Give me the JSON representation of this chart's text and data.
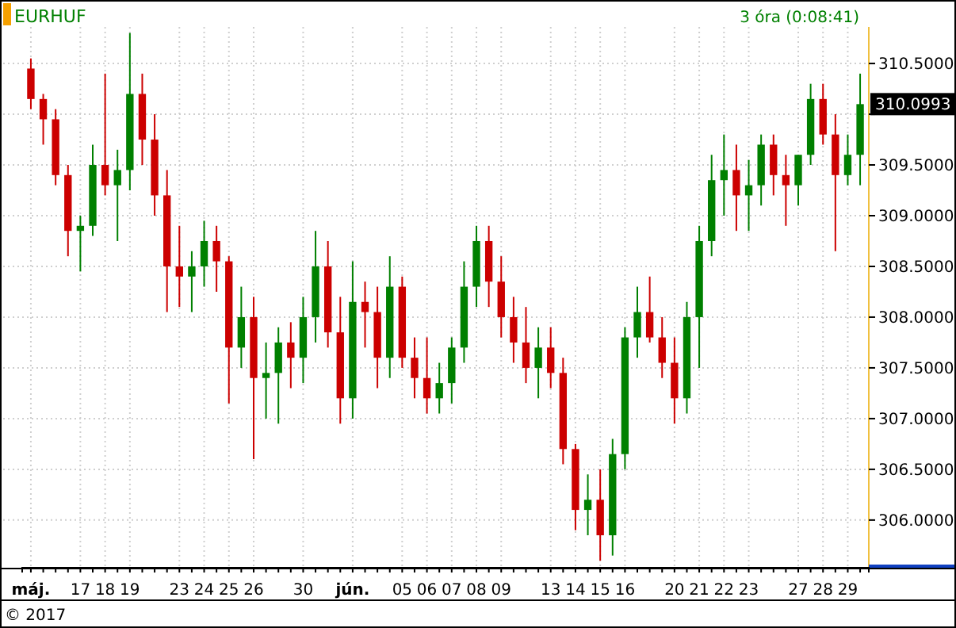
{
  "chart_data": {
    "type": "candlestick",
    "title": "EURHUF",
    "subtitle": "3 óra (0:08:41)",
    "categories": [
      "máj.",
      null,
      null,
      null,
      "17",
      null,
      "18",
      null,
      "19",
      null,
      null,
      null,
      "23",
      null,
      "24",
      null,
      "25",
      null,
      "26",
      null,
      null,
      null,
      "30",
      null,
      null,
      null,
      "jún.",
      null,
      null,
      null,
      "05",
      null,
      "06",
      null,
      "07",
      null,
      "08",
      null,
      "09",
      null,
      null,
      null,
      "13",
      null,
      "14",
      null,
      "15",
      null,
      "16",
      null,
      null,
      null,
      "20",
      null,
      "21",
      null,
      "22",
      null,
      "23",
      null,
      null,
      null,
      "27",
      null,
      "28",
      null,
      "29",
      null
    ],
    "ohlc": [
      [
        310.45,
        310.55,
        310.05,
        310.15
      ],
      [
        310.15,
        310.2,
        309.7,
        309.95
      ],
      [
        309.95,
        310.05,
        309.3,
        309.4
      ],
      [
        309.4,
        309.5,
        308.6,
        308.85
      ],
      [
        308.85,
        309.0,
        308.45,
        308.9
      ],
      [
        308.9,
        309.7,
        308.8,
        309.5
      ],
      [
        309.5,
        310.4,
        309.2,
        309.3
      ],
      [
        309.3,
        309.65,
        308.75,
        309.45
      ],
      [
        309.45,
        310.8,
        309.25,
        310.2
      ],
      [
        310.2,
        310.4,
        309.5,
        309.75
      ],
      [
        309.75,
        310.0,
        309.0,
        309.2
      ],
      [
        309.2,
        309.45,
        308.05,
        308.5
      ],
      [
        308.5,
        308.9,
        308.1,
        308.4
      ],
      [
        308.4,
        308.65,
        308.05,
        308.5
      ],
      [
        308.5,
        308.95,
        308.3,
        308.75
      ],
      [
        308.75,
        308.9,
        308.25,
        308.55
      ],
      [
        308.55,
        308.6,
        307.15,
        307.7
      ],
      [
        307.7,
        308.3,
        307.5,
        308.0
      ],
      [
        308.0,
        308.2,
        306.6,
        307.4
      ],
      [
        307.4,
        307.75,
        307.0,
        307.45
      ],
      [
        307.45,
        307.9,
        306.95,
        307.75
      ],
      [
        307.75,
        307.95,
        307.3,
        307.6
      ],
      [
        307.6,
        308.2,
        307.35,
        308.0
      ],
      [
        308.0,
        308.85,
        307.75,
        308.5
      ],
      [
        308.5,
        308.75,
        307.7,
        307.85
      ],
      [
        307.85,
        308.2,
        306.95,
        307.2
      ],
      [
        307.2,
        308.55,
        307.0,
        308.15
      ],
      [
        308.15,
        308.35,
        307.7,
        308.05
      ],
      [
        308.05,
        308.3,
        307.3,
        307.6
      ],
      [
        307.6,
        308.6,
        307.4,
        308.3
      ],
      [
        308.3,
        308.4,
        307.5,
        307.6
      ],
      [
        307.6,
        307.8,
        307.2,
        307.4
      ],
      [
        307.4,
        307.8,
        307.05,
        307.2
      ],
      [
        307.2,
        307.55,
        307.05,
        307.35
      ],
      [
        307.35,
        307.8,
        307.15,
        307.7
      ],
      [
        307.7,
        308.55,
        307.55,
        308.3
      ],
      [
        308.3,
        308.9,
        308.1,
        308.75
      ],
      [
        308.75,
        308.9,
        308.1,
        308.35
      ],
      [
        308.35,
        308.6,
        307.8,
        308.0
      ],
      [
        308.0,
        308.2,
        307.55,
        307.75
      ],
      [
        307.75,
        308.1,
        307.35,
        307.5
      ],
      [
        307.5,
        307.9,
        307.2,
        307.7
      ],
      [
        307.7,
        307.9,
        307.3,
        307.45
      ],
      [
        307.45,
        307.6,
        306.55,
        306.7
      ],
      [
        306.7,
        306.75,
        305.9,
        306.1
      ],
      [
        306.1,
        306.45,
        305.85,
        306.2
      ],
      [
        306.2,
        306.5,
        305.6,
        305.85
      ],
      [
        305.85,
        306.8,
        305.65,
        306.65
      ],
      [
        306.65,
        307.9,
        306.5,
        307.8
      ],
      [
        307.8,
        308.3,
        307.6,
        308.05
      ],
      [
        308.05,
        308.4,
        307.75,
        307.8
      ],
      [
        307.8,
        308.0,
        307.4,
        307.55
      ],
      [
        307.55,
        307.8,
        306.95,
        307.2
      ],
      [
        307.2,
        308.15,
        307.05,
        308.0
      ],
      [
        308.0,
        308.9,
        307.5,
        308.75
      ],
      [
        308.75,
        309.6,
        308.6,
        309.35
      ],
      [
        309.35,
        309.8,
        309.0,
        309.45
      ],
      [
        309.45,
        309.7,
        308.85,
        309.2
      ],
      [
        309.2,
        309.55,
        308.85,
        309.3
      ],
      [
        309.3,
        309.8,
        309.1,
        309.7
      ],
      [
        309.7,
        309.8,
        309.2,
        309.4
      ],
      [
        309.4,
        309.6,
        308.9,
        309.3
      ],
      [
        309.3,
        309.6,
        309.1,
        309.6
      ],
      [
        309.6,
        310.3,
        309.5,
        310.15
      ],
      [
        310.15,
        310.3,
        309.7,
        309.8
      ],
      [
        309.8,
        310.0,
        308.65,
        309.4
      ],
      [
        309.4,
        309.8,
        309.3,
        309.6
      ],
      [
        309.6,
        310.4,
        309.3,
        310.0993
      ]
    ],
    "colors": [
      "#cc0000",
      "#cc0000",
      "#cc0000",
      "#cc0000",
      "#008000",
      "#008000",
      "#cc0000",
      "#008000",
      "#008000",
      "#cc0000",
      "#cc0000",
      "#cc0000",
      "#cc0000",
      "#008000",
      "#008000",
      "#cc0000",
      "#cc0000",
      "#008000",
      "#cc0000",
      "#008000",
      "#008000",
      "#cc0000",
      "#008000",
      "#008000",
      "#cc0000",
      "#cc0000",
      "#008000",
      "#cc0000",
      "#cc0000",
      "#008000",
      "#cc0000",
      "#cc0000",
      "#cc0000",
      "#008000",
      "#008000",
      "#008000",
      "#008000",
      "#cc0000",
      "#cc0000",
      "#cc0000",
      "#cc0000",
      "#008000",
      "#cc0000",
      "#cc0000",
      "#cc0000",
      "#008000",
      "#cc0000",
      "#008000",
      "#008000",
      "#008000",
      "#cc0000",
      "#cc0000",
      "#cc0000",
      "#008000",
      "#008000",
      "#008000",
      "#008000",
      "#cc0000",
      "#008000",
      "#008000",
      "#cc0000",
      "#cc0000",
      "#008000",
      "#008000",
      "#cc0000",
      "#cc0000",
      "#008000",
      "#008000"
    ],
    "ylim": [
      305.53,
      310.86
    ],
    "yticks": [
      {
        "value": 306,
        "label": "306.0000"
      },
      {
        "value": 306.5,
        "label": "306.5000"
      },
      {
        "value": 307,
        "label": "307.0000"
      },
      {
        "value": 307.5,
        "label": "307.5000"
      },
      {
        "value": 308,
        "label": "308.0000"
      },
      {
        "value": 308.5,
        "label": "308.5000"
      },
      {
        "value": 309,
        "label": "309.0000"
      },
      {
        "value": 309.5,
        "label": "309.5000"
      },
      {
        "value": 310,
        "label": null
      },
      {
        "value": 310.5,
        "label": "310.5000"
      }
    ],
    "grid": true,
    "annotations": [
      "310.0993",
      "© 2017"
    ]
  }
}
